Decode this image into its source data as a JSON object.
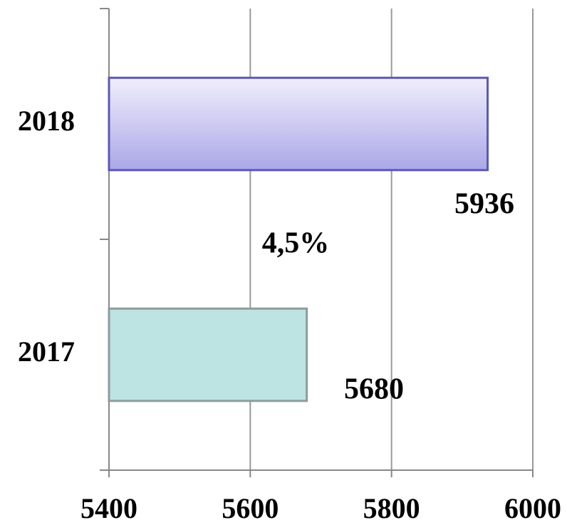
{
  "chart_data": {
    "type": "barh",
    "categories": [
      "2018",
      "2017"
    ],
    "values": [
      5936,
      5680
    ],
    "colors": [
      "#aaa7e8",
      "#bde3e3"
    ],
    "edge_colors": [
      "#5b59b3",
      "#8e9c9c"
    ],
    "xlim": [
      5400,
      6000
    ],
    "xticks": [
      5400,
      5600,
      5800,
      6000
    ],
    "grid": true,
    "annotations": [
      "4,5%"
    ]
  }
}
